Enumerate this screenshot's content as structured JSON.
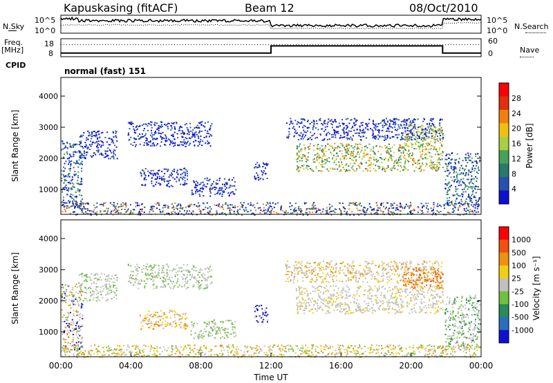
{
  "header": {
    "station": "Kapuskasing (fitACF)",
    "beam": "Beam 12",
    "date": "08/Oct/2010"
  },
  "side_labels": {
    "nsky": "N.Sky",
    "nsky_ticks": [
      "10^5",
      "10^0"
    ],
    "nsearch": "N.Search",
    "nsearch_ticks": [
      "10^5",
      "10^0"
    ],
    "freq_line1": "Freq.",
    "freq_line2": "[MHz]",
    "freq_ticks": [
      "18",
      "8"
    ],
    "nave": "Nave",
    "nave_ticks": [
      "60",
      "0"
    ],
    "cpid": "CPID",
    "cpid_value": "normal (fast) 151"
  },
  "colors": {
    "power_scale": [
      "#1010d0",
      "#2850b0",
      "#2a7a6a",
      "#4aa05a",
      "#a8d040",
      "#f0c010",
      "#f08010",
      "#e03010",
      "#ff0000"
    ],
    "velocity_scale": [
      "#1010d0",
      "#2a6fbf",
      "#2a8a5a",
      "#70c040",
      "#c0c0c0",
      "#f0d010",
      "#f09010",
      "#f05010",
      "#ff0000"
    ]
  },
  "chart_data": [
    {
      "type": "heatmap",
      "name": "power",
      "ylabel": "Slant Range [km]",
      "ylim": [
        200,
        4600
      ],
      "yticks": [
        "1000",
        "2000",
        "3000",
        "4000"
      ],
      "x_range": [
        "00:00",
        "24:00"
      ],
      "colorbar": {
        "label": "Power [dB]",
        "ticks": [
          "4",
          "8",
          "12",
          "16",
          "20",
          "24",
          "28"
        ]
      },
      "regions": [
        {
          "x0": 0.0,
          "x1": 1.2,
          "y0": 400,
          "y1": 2600,
          "levels": [
            0,
            1,
            2,
            3
          ]
        },
        {
          "x0": 1.0,
          "x1": 3.2,
          "y0": 2000,
          "y1": 2900,
          "levels": [
            0,
            1
          ]
        },
        {
          "x0": 3.8,
          "x1": 8.6,
          "y0": 2400,
          "y1": 3200,
          "levels": [
            0,
            1
          ]
        },
        {
          "x0": 4.5,
          "x1": 7.2,
          "y0": 1100,
          "y1": 1700,
          "levels": [
            0,
            1
          ]
        },
        {
          "x0": 7.4,
          "x1": 10.0,
          "y0": 800,
          "y1": 1400,
          "levels": [
            0,
            1
          ]
        },
        {
          "x0": 11.0,
          "x1": 11.8,
          "y0": 1300,
          "y1": 1900,
          "levels": [
            0,
            1
          ]
        },
        {
          "x0": 12.8,
          "x1": 21.8,
          "y0": 2600,
          "y1": 3300,
          "levels": [
            0,
            1
          ]
        },
        {
          "x0": 13.4,
          "x1": 21.8,
          "y0": 1600,
          "y1": 2500,
          "levels": [
            2,
            3,
            4,
            5,
            6
          ]
        },
        {
          "x0": 19.5,
          "x1": 21.8,
          "y0": 2400,
          "y1": 3100,
          "levels": [
            3,
            4,
            5
          ]
        },
        {
          "x0": 21.9,
          "x1": 24.0,
          "y0": 500,
          "y1": 2200,
          "levels": [
            0,
            1,
            2,
            3
          ]
        },
        {
          "x0": 0.0,
          "x1": 24.0,
          "y0": 200,
          "y1": 600,
          "levels": [
            0,
            1,
            2,
            6
          ]
        }
      ]
    },
    {
      "type": "heatmap",
      "name": "velocity",
      "ylabel": "Slant Range [km]",
      "ylim": [
        200,
        4600
      ],
      "yticks": [
        "1000",
        "2000",
        "3000",
        "4000"
      ],
      "xlabel": "Time UT",
      "xticks": [
        "00:00",
        "04:00",
        "08:00",
        "12:00",
        "16:00",
        "20:00",
        "00:00"
      ],
      "colorbar": {
        "label": "Velocity [m s⁻¹]",
        "ticks": [
          "1000",
          "500",
          "100",
          "25",
          "-25",
          "-100",
          "-500",
          "-1000"
        ]
      },
      "regions": [
        {
          "x0": 0.0,
          "x1": 1.2,
          "y0": 400,
          "y1": 2600,
          "levels": [
            4,
            4,
            3,
            6,
            0
          ]
        },
        {
          "x0": 1.0,
          "x1": 3.2,
          "y0": 2000,
          "y1": 2900,
          "levels": [
            4,
            4,
            3
          ]
        },
        {
          "x0": 3.8,
          "x1": 8.6,
          "y0": 2400,
          "y1": 3200,
          "levels": [
            4,
            4,
            3
          ]
        },
        {
          "x0": 4.5,
          "x1": 7.2,
          "y0": 1100,
          "y1": 1700,
          "levels": [
            4,
            5,
            6
          ]
        },
        {
          "x0": 7.4,
          "x1": 10.0,
          "y0": 800,
          "y1": 1400,
          "levels": [
            4,
            3
          ]
        },
        {
          "x0": 11.0,
          "x1": 11.8,
          "y0": 1300,
          "y1": 1900,
          "levels": [
            4,
            0
          ]
        },
        {
          "x0": 12.8,
          "x1": 21.8,
          "y0": 2600,
          "y1": 3300,
          "levels": [
            4,
            4,
            5,
            6
          ]
        },
        {
          "x0": 13.4,
          "x1": 21.8,
          "y0": 1600,
          "y1": 2500,
          "levels": [
            4,
            4,
            4,
            5
          ]
        },
        {
          "x0": 19.5,
          "x1": 21.8,
          "y0": 2400,
          "y1": 3100,
          "levels": [
            6,
            7,
            6
          ]
        },
        {
          "x0": 21.9,
          "x1": 24.0,
          "y0": 500,
          "y1": 2200,
          "levels": [
            4,
            4,
            3,
            2
          ]
        },
        {
          "x0": 0.0,
          "x1": 24.0,
          "y0": 200,
          "y1": 600,
          "levels": [
            3,
            4,
            5,
            6
          ]
        }
      ]
    }
  ],
  "top_series": {
    "freq_step": {
      "hours": [
        0,
        12,
        12,
        21.8,
        21.8,
        24
      ],
      "mhz": [
        10,
        10,
        14,
        14,
        10,
        10
      ]
    },
    "nave_level": 40
  }
}
